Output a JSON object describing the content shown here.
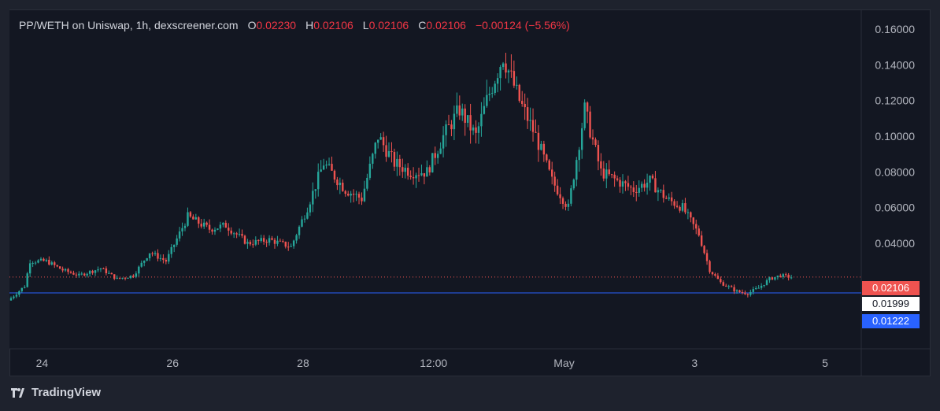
{
  "legend": {
    "symbol": "PP/WETH on Uniswap, 1h, dexscreener.com",
    "o_label": "O",
    "o_value": "0.02230",
    "h_label": "H",
    "h_value": "0.02106",
    "l_label": "L",
    "l_value": "0.02106",
    "c_label": "C",
    "c_value": "0.02106",
    "change": "−0.00124 (−5.56%)"
  },
  "price_tags": {
    "last": "0.02106",
    "middle": "0.01999",
    "line": "0.01222"
  },
  "branding": {
    "label": "TradingView"
  },
  "colors": {
    "up": "#26a69a",
    "down": "#ef5350",
    "background": "#131722",
    "grid": "#2a2e39",
    "blue_line": "#2962ff"
  },
  "chart_data": {
    "type": "candlestick",
    "title": "PP/WETH on Uniswap, 1h, dexscreener.com",
    "y_ticks": [
      "0.16000",
      "0.14000",
      "0.12000",
      "0.10000",
      "0.08000",
      "0.06000",
      "0.04000"
    ],
    "ylim": [
      0.0,
      0.17
    ],
    "x_ticks": [
      "24",
      "26",
      "28",
      "12:00",
      "May",
      "3",
      "5"
    ],
    "x_tick_index": [
      12,
      60,
      108,
      156,
      204,
      252,
      300
    ],
    "horizontal_lines": [
      {
        "value": 0.02106,
        "style": "dotted",
        "color": "#ef5350"
      },
      {
        "value": 0.01222,
        "style": "solid",
        "color": "#2962ff"
      }
    ],
    "last": {
      "open": 0.0223,
      "high": 0.02106,
      "low": 0.02106,
      "close": 0.02106,
      "change": -0.00124,
      "change_pct": -5.56
    },
    "price_path": [
      [
        0,
        0.008
      ],
      [
        6,
        0.016
      ],
      [
        8,
        0.03
      ],
      [
        14,
        0.03
      ],
      [
        20,
        0.025
      ],
      [
        26,
        0.022
      ],
      [
        34,
        0.026
      ],
      [
        40,
        0.02
      ],
      [
        46,
        0.022
      ],
      [
        52,
        0.035
      ],
      [
        58,
        0.03
      ],
      [
        66,
        0.055
      ],
      [
        74,
        0.048
      ],
      [
        80,
        0.05
      ],
      [
        88,
        0.04
      ],
      [
        96,
        0.042
      ],
      [
        104,
        0.038
      ],
      [
        110,
        0.06
      ],
      [
        116,
        0.085
      ],
      [
        124,
        0.07
      ],
      [
        130,
        0.065
      ],
      [
        136,
        0.1
      ],
      [
        142,
        0.085
      ],
      [
        148,
        0.08
      ],
      [
        154,
        0.08
      ],
      [
        160,
        0.1
      ],
      [
        166,
        0.115
      ],
      [
        172,
        0.1
      ],
      [
        176,
        0.12
      ],
      [
        182,
        0.145
      ],
      [
        188,
        0.12
      ],
      [
        194,
        0.1
      ],
      [
        200,
        0.075
      ],
      [
        206,
        0.06
      ],
      [
        212,
        0.115
      ],
      [
        218,
        0.08
      ],
      [
        224,
        0.075
      ],
      [
        230,
        0.07
      ],
      [
        236,
        0.075
      ],
      [
        242,
        0.065
      ],
      [
        248,
        0.06
      ],
      [
        254,
        0.045
      ],
      [
        258,
        0.025
      ],
      [
        262,
        0.018
      ],
      [
        268,
        0.013
      ],
      [
        272,
        0.012
      ],
      [
        276,
        0.015
      ],
      [
        280,
        0.02
      ],
      [
        284,
        0.022
      ],
      [
        288,
        0.021
      ]
    ],
    "candle_count": 288
  }
}
